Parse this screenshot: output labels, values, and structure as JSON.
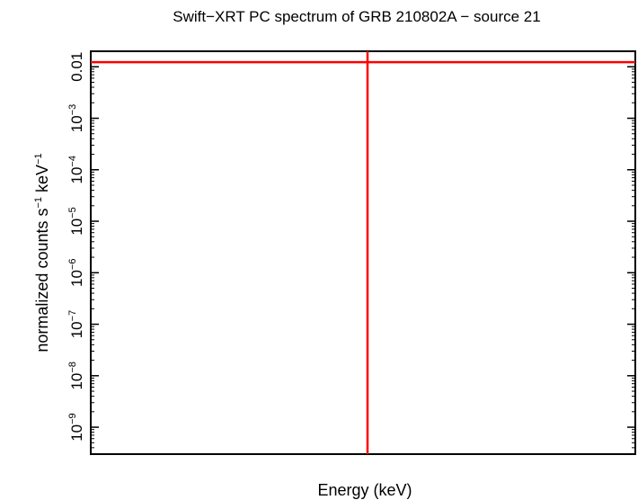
{
  "chart_data": {
    "type": "line",
    "title": "Swift−XRT PC spectrum of GRB 210802A − source 21",
    "xlabel": "Energy (keV)",
    "ylabel": {
      "parts": [
        {
          "text": "normalized counts s",
          "sup": false
        },
        {
          "text": "−1",
          "sup": true
        },
        {
          "text": " keV",
          "sup": false
        },
        {
          "text": "−1",
          "sup": true
        }
      ]
    },
    "yscale": "log",
    "ylim": [
      3e-10,
      0.02
    ],
    "y_ticks": [
      {
        "value": 0.01,
        "base": "0.01",
        "exp": ""
      },
      {
        "value": 0.001,
        "base": "10",
        "exp": "−3"
      },
      {
        "value": 0.0001,
        "base": "10",
        "exp": "−4"
      },
      {
        "value": 1e-05,
        "base": "10",
        "exp": "−5"
      },
      {
        "value": 1e-06,
        "base": "10",
        "exp": "−6"
      },
      {
        "value": 1e-07,
        "base": "10",
        "exp": "−7"
      },
      {
        "value": 1e-08,
        "base": "10",
        "exp": "−8"
      },
      {
        "value": 1e-09,
        "base": "10",
        "exp": "−9"
      }
    ],
    "grid": false,
    "series": [
      {
        "color": "#ff0000",
        "kind": "hline",
        "y": 0.0123
      },
      {
        "color": "#ff0000",
        "kind": "vline",
        "x_fraction": 0.5
      }
    ]
  }
}
